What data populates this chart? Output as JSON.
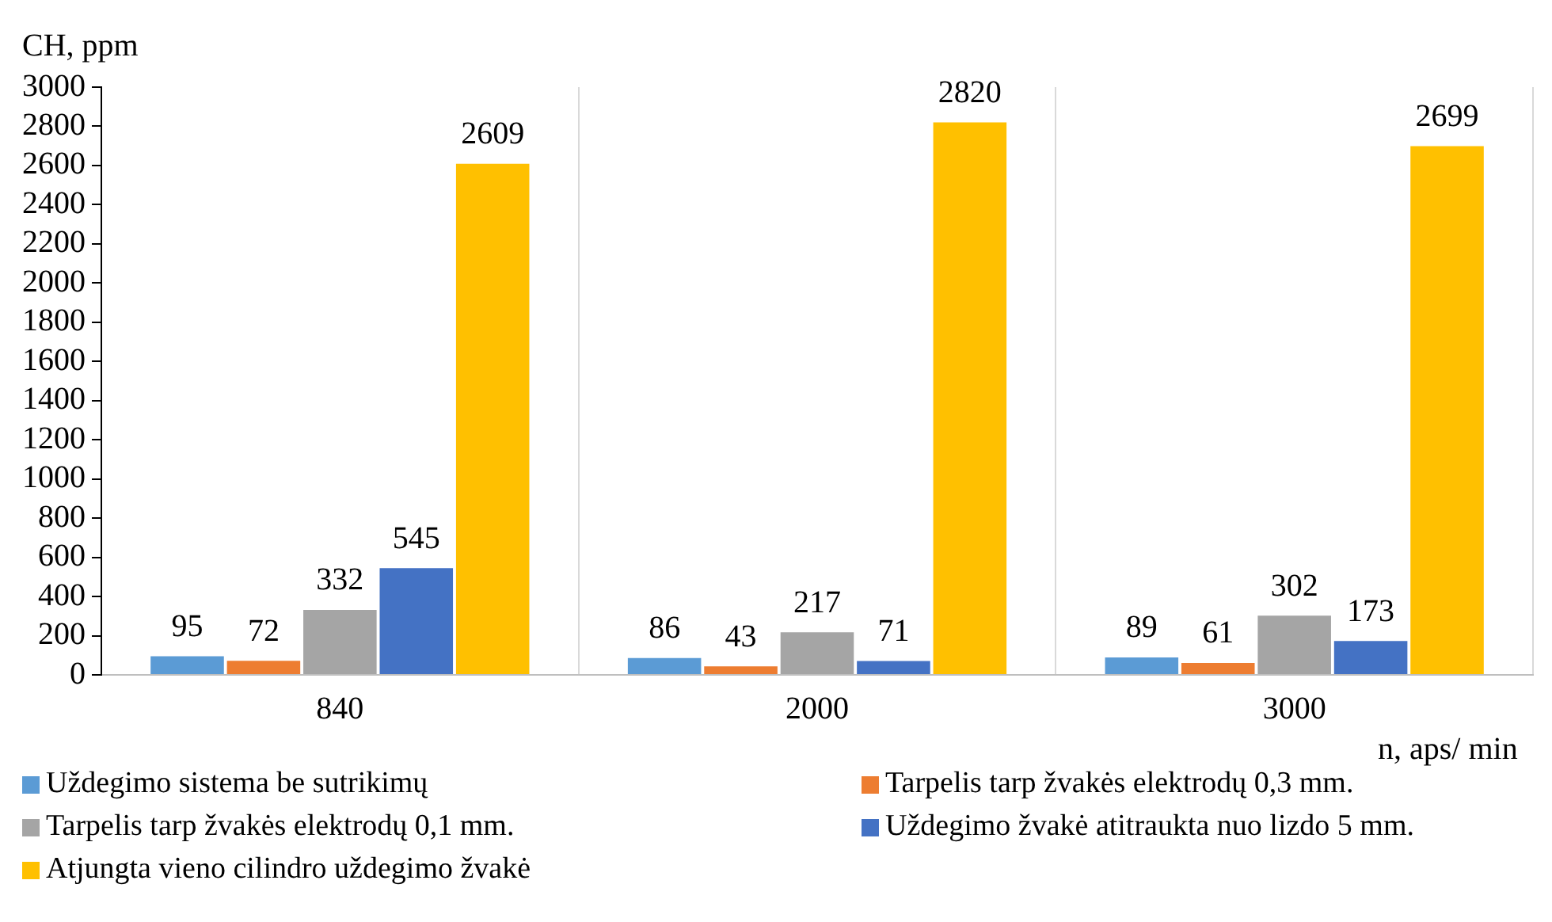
{
  "chart_data": {
    "type": "bar",
    "ylabel": "CH, ppm",
    "xlabel": "n, aps/ min",
    "categories": [
      "840",
      "2000",
      "3000"
    ],
    "series": [
      {
        "name": "Uždegimo sistema be sutrikimų",
        "color": "#5b9bd5",
        "values": [
          95,
          86,
          89
        ]
      },
      {
        "name": "Tarpelis tarp žvakės elektrodų 0,3 mm.",
        "color": "#ed7d31",
        "values": [
          72,
          43,
          61
        ]
      },
      {
        "name": "Tarpelis tarp žvakės elektrodų 0,1 mm.",
        "color": "#a5a5a5",
        "values": [
          332,
          217,
          302
        ]
      },
      {
        "name": "Uždegimo žvakė atitraukta nuo lizdo 5 mm.",
        "color": "#4472c4",
        "values": [
          545,
          71,
          173
        ]
      },
      {
        "name": "Atjungta vieno cilindro uždegimo žvakė",
        "color": "#ffc000",
        "values": [
          2609,
          2820,
          2699
        ]
      }
    ],
    "ylim": [
      0,
      3000
    ],
    "yticks": [
      0,
      200,
      400,
      600,
      800,
      1000,
      1200,
      1400,
      1600,
      1800,
      2000,
      2200,
      2400,
      2600,
      2800,
      3000
    ],
    "grid": "x",
    "legend": "bottom",
    "data_labels": true
  }
}
